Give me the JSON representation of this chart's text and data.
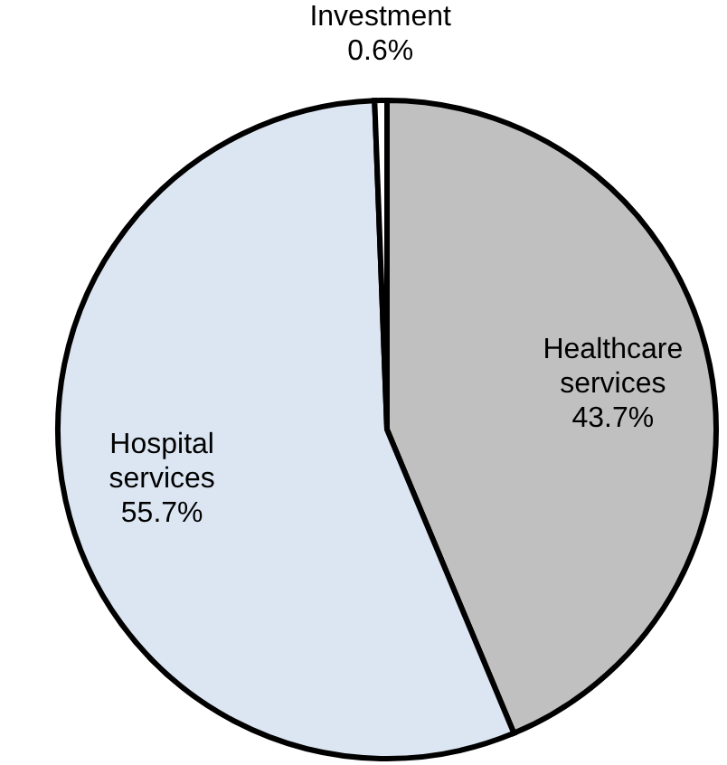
{
  "chart_data": {
    "type": "pie",
    "categories": [
      "Healthcare services",
      "Hospital services",
      "Investment"
    ],
    "values": [
      43.7,
      55.7,
      0.6
    ],
    "value_labels": [
      "43.7%",
      "55.7%",
      "0.6%"
    ],
    "colors": [
      "#c0c0c0",
      "#dce6f2",
      "#ffffff"
    ],
    "legend": false
  }
}
